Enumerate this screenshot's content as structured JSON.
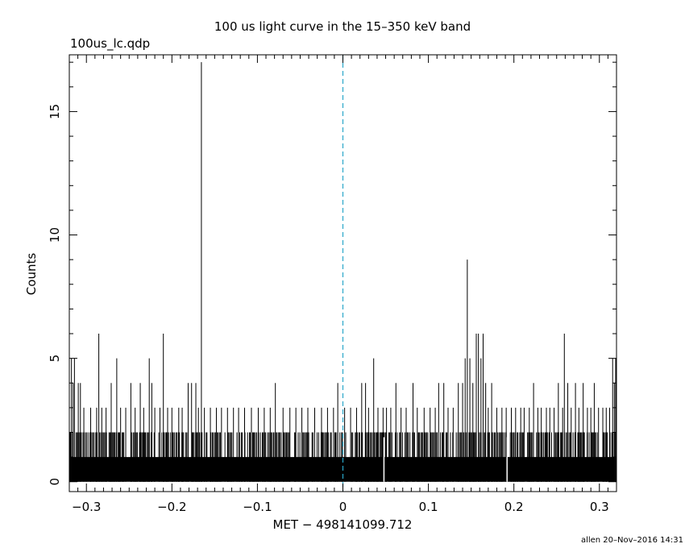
{
  "page": {
    "title": "100 us light curve in the 15–350 keV band",
    "file_label": "100us_lc.qdp",
    "footer": "allen 20–Nov–2016 14:31"
  },
  "chart_data": {
    "type": "line",
    "title": "100 us light curve in the 15–350 keV band",
    "xlabel": "MET − 498141099.712",
    "ylabel": "Counts",
    "xlim": [
      -0.32,
      0.32
    ],
    "ylim": [
      -0.4,
      17.3
    ],
    "x_ticks": [
      -0.3,
      -0.2,
      -0.1,
      0,
      0.1,
      0.2,
      0.3
    ],
    "x_tick_labels": [
      "−0.3",
      "−0.2",
      "−0.1",
      "0",
      "0.1",
      "0.2",
      "0.3"
    ],
    "y_ticks": [
      0,
      5,
      10,
      15
    ],
    "y_tick_labels": [
      "0",
      "5",
      "10",
      "15"
    ],
    "bin_width": 0.0001,
    "reference_line": {
      "x": 0,
      "style": "dashed",
      "color": "#2aa7c9"
    },
    "baseline_band": {
      "low": 0,
      "high": 1
    },
    "typical_upper_envelope": 2,
    "spikes": [
      {
        "x": -0.3175,
        "y": 5
      },
      {
        "x": -0.3155,
        "y": 4
      },
      {
        "x": -0.314,
        "y": 5
      },
      {
        "x": -0.3095,
        "y": 4
      },
      {
        "x": -0.307,
        "y": 4
      },
      {
        "x": -0.303,
        "y": 3
      },
      {
        "x": -0.295,
        "y": 3
      },
      {
        "x": -0.288,
        "y": 3
      },
      {
        "x": -0.2855,
        "y": 6
      },
      {
        "x": -0.282,
        "y": 3
      },
      {
        "x": -0.277,
        "y": 3
      },
      {
        "x": -0.271,
        "y": 4
      },
      {
        "x": -0.2645,
        "y": 5
      },
      {
        "x": -0.26,
        "y": 3
      },
      {
        "x": -0.254,
        "y": 3
      },
      {
        "x": -0.248,
        "y": 4
      },
      {
        "x": -0.243,
        "y": 3
      },
      {
        "x": -0.237,
        "y": 4
      },
      {
        "x": -0.233,
        "y": 3
      },
      {
        "x": -0.2265,
        "y": 5
      },
      {
        "x": -0.2235,
        "y": 4
      },
      {
        "x": -0.22,
        "y": 3
      },
      {
        "x": -0.214,
        "y": 3
      },
      {
        "x": -0.21,
        "y": 6
      },
      {
        "x": -0.205,
        "y": 3
      },
      {
        "x": -0.2,
        "y": 3
      },
      {
        "x": -0.192,
        "y": 3
      },
      {
        "x": -0.188,
        "y": 3
      },
      {
        "x": -0.181,
        "y": 4
      },
      {
        "x": -0.177,
        "y": 4
      },
      {
        "x": -0.172,
        "y": 4
      },
      {
        "x": -0.169,
        "y": 3
      },
      {
        "x": -0.1655,
        "y": 17
      },
      {
        "x": -0.162,
        "y": 3
      },
      {
        "x": -0.155,
        "y": 3
      },
      {
        "x": -0.148,
        "y": 3
      },
      {
        "x": -0.142,
        "y": 3
      },
      {
        "x": -0.135,
        "y": 3
      },
      {
        "x": -0.128,
        "y": 3
      },
      {
        "x": -0.122,
        "y": 3
      },
      {
        "x": -0.115,
        "y": 3
      },
      {
        "x": -0.107,
        "y": 3
      },
      {
        "x": -0.099,
        "y": 3
      },
      {
        "x": -0.092,
        "y": 3
      },
      {
        "x": -0.085,
        "y": 3
      },
      {
        "x": -0.079,
        "y": 4
      },
      {
        "x": -0.07,
        "y": 3
      },
      {
        "x": -0.062,
        "y": 3
      },
      {
        "x": -0.055,
        "y": 3
      },
      {
        "x": -0.048,
        "y": 3
      },
      {
        "x": -0.041,
        "y": 3
      },
      {
        "x": -0.033,
        "y": 3
      },
      {
        "x": -0.025,
        "y": 3
      },
      {
        "x": -0.018,
        "y": 3
      },
      {
        "x": -0.011,
        "y": 3
      },
      {
        "x": -0.006,
        "y": 4
      },
      {
        "x": 0.002,
        "y": 3
      },
      {
        "x": 0.009,
        "y": 3
      },
      {
        "x": 0.016,
        "y": 3
      },
      {
        "x": 0.022,
        "y": 4
      },
      {
        "x": 0.0265,
        "y": 4
      },
      {
        "x": 0.03,
        "y": 3
      },
      {
        "x": 0.036,
        "y": 5
      },
      {
        "x": 0.041,
        "y": 3
      },
      {
        "x": 0.047,
        "y": 3
      },
      {
        "x": 0.051,
        "y": 3
      },
      {
        "x": 0.056,
        "y": 3
      },
      {
        "x": 0.062,
        "y": 4
      },
      {
        "x": 0.068,
        "y": 3
      },
      {
        "x": 0.074,
        "y": 3
      },
      {
        "x": 0.082,
        "y": 4
      },
      {
        "x": 0.087,
        "y": 3
      },
      {
        "x": 0.095,
        "y": 3
      },
      {
        "x": 0.102,
        "y": 3
      },
      {
        "x": 0.108,
        "y": 3
      },
      {
        "x": 0.112,
        "y": 4
      },
      {
        "x": 0.118,
        "y": 4
      },
      {
        "x": 0.123,
        "y": 3
      },
      {
        "x": 0.129,
        "y": 3
      },
      {
        "x": 0.135,
        "y": 4
      },
      {
        "x": 0.14,
        "y": 4
      },
      {
        "x": 0.143,
        "y": 5
      },
      {
        "x": 0.1455,
        "y": 9
      },
      {
        "x": 0.1485,
        "y": 5
      },
      {
        "x": 0.152,
        "y": 4
      },
      {
        "x": 0.156,
        "y": 6
      },
      {
        "x": 0.1585,
        "y": 6
      },
      {
        "x": 0.1615,
        "y": 5
      },
      {
        "x": 0.164,
        "y": 6
      },
      {
        "x": 0.167,
        "y": 4
      },
      {
        "x": 0.17,
        "y": 3
      },
      {
        "x": 0.174,
        "y": 4
      },
      {
        "x": 0.18,
        "y": 3
      },
      {
        "x": 0.186,
        "y": 3
      },
      {
        "x": 0.191,
        "y": 3
      },
      {
        "x": 0.197,
        "y": 3
      },
      {
        "x": 0.202,
        "y": 3
      },
      {
        "x": 0.208,
        "y": 3
      },
      {
        "x": 0.212,
        "y": 3
      },
      {
        "x": 0.218,
        "y": 3
      },
      {
        "x": 0.223,
        "y": 4
      },
      {
        "x": 0.228,
        "y": 3
      },
      {
        "x": 0.232,
        "y": 3
      },
      {
        "x": 0.238,
        "y": 3
      },
      {
        "x": 0.242,
        "y": 3
      },
      {
        "x": 0.247,
        "y": 3
      },
      {
        "x": 0.252,
        "y": 4
      },
      {
        "x": 0.257,
        "y": 3
      },
      {
        "x": 0.259,
        "y": 6
      },
      {
        "x": 0.263,
        "y": 4
      },
      {
        "x": 0.267,
        "y": 3
      },
      {
        "x": 0.272,
        "y": 4
      },
      {
        "x": 0.276,
        "y": 3
      },
      {
        "x": 0.281,
        "y": 4
      },
      {
        "x": 0.286,
        "y": 3
      },
      {
        "x": 0.29,
        "y": 3
      },
      {
        "x": 0.294,
        "y": 4
      },
      {
        "x": 0.299,
        "y": 3
      },
      {
        "x": 0.304,
        "y": 3
      },
      {
        "x": 0.308,
        "y": 3
      },
      {
        "x": 0.312,
        "y": 3
      },
      {
        "x": 0.3155,
        "y": 5
      },
      {
        "x": 0.3175,
        "y": 4
      },
      {
        "x": 0.319,
        "y": 5
      }
    ],
    "dropouts": [
      {
        "x": 0.048
      },
      {
        "x": 0.192
      }
    ]
  }
}
